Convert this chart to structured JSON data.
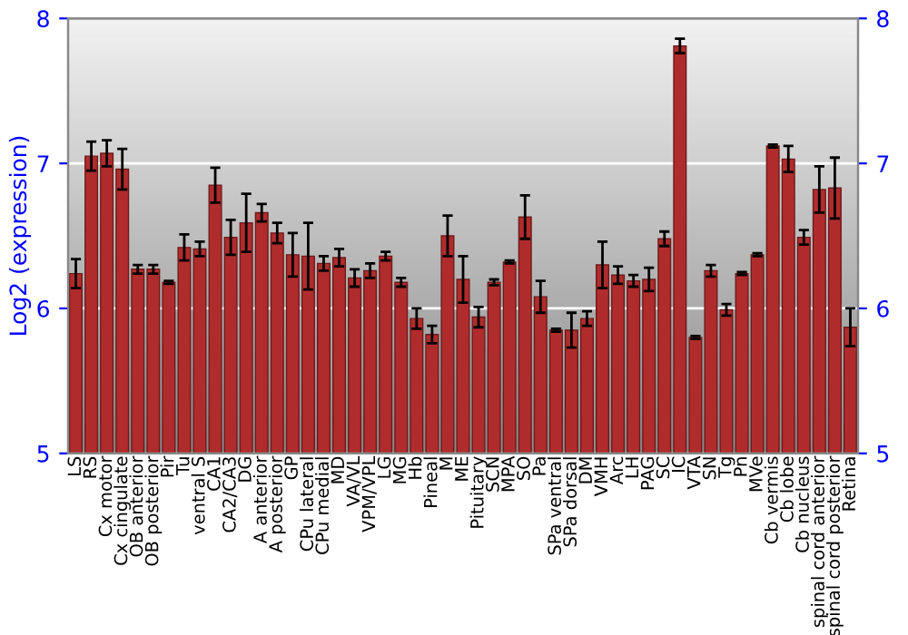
{
  "chart_data": {
    "type": "bar",
    "ylabel": "Log2 (expression)",
    "categories": [
      "LS",
      "RS",
      "Cx motor",
      "Cx cingulate",
      "OB anterior",
      "OB posterior",
      "Pir",
      "Tu",
      "ventral S",
      "CA1",
      "CA2/CA3",
      "DG",
      "A anterior",
      "A posterior",
      "GP",
      "CPu lateral",
      "CPu medial",
      "MD",
      "VA/VL",
      "VPM/VPL",
      "LG",
      "MG",
      "Hb",
      "Pineal",
      "M",
      "ME",
      "Pituitary",
      "SCN",
      "MPA",
      "SO",
      "Pa",
      "SPa ventral",
      "SPa dorsal",
      "DM",
      "VMH",
      "Arc",
      "LH",
      "PAG",
      "SC",
      "IC",
      "VTA",
      "SN",
      "Tg",
      "Pn",
      "MVe",
      "Cb vermis",
      "Cb lobe",
      "Cb nucleus",
      "spinal cord anterior",
      "spinal cord posterior",
      "Retina"
    ],
    "values": [
      6.24,
      7.05,
      7.07,
      6.96,
      6.27,
      6.27,
      6.18,
      6.42,
      6.41,
      6.85,
      6.49,
      6.59,
      6.66,
      6.52,
      6.37,
      6.36,
      6.31,
      6.35,
      6.21,
      6.26,
      6.36,
      6.18,
      5.93,
      5.82,
      6.5,
      6.2,
      5.94,
      6.18,
      6.32,
      6.63,
      6.08,
      5.85,
      5.85,
      5.93,
      6.3,
      6.23,
      6.19,
      6.2,
      6.48,
      7.81,
      5.8,
      6.26,
      5.99,
      6.24,
      6.37,
      7.12,
      7.03,
      6.49,
      6.82,
      6.83,
      5.87
    ],
    "errors": [
      0.1,
      0.1,
      0.09,
      0.14,
      0.03,
      0.03,
      0.01,
      0.09,
      0.05,
      0.12,
      0.12,
      0.2,
      0.06,
      0.07,
      0.15,
      0.23,
      0.05,
      0.06,
      0.06,
      0.05,
      0.03,
      0.03,
      0.07,
      0.06,
      0.14,
      0.16,
      0.07,
      0.02,
      0.01,
      0.15,
      0.11,
      0.01,
      0.12,
      0.05,
      0.16,
      0.06,
      0.04,
      0.08,
      0.05,
      0.05,
      0.01,
      0.04,
      0.04,
      0.01,
      0.01,
      0.01,
      0.09,
      0.05,
      0.16,
      0.21,
      0.13
    ],
    "color": "#b02c2c",
    "ylim": [
      5,
      8
    ],
    "yticks": [
      5,
      6,
      7,
      8
    ],
    "y2lim": [
      5,
      8
    ],
    "y2ticks": [
      5,
      6,
      7,
      8
    ],
    "grid": "y",
    "legend": false
  }
}
